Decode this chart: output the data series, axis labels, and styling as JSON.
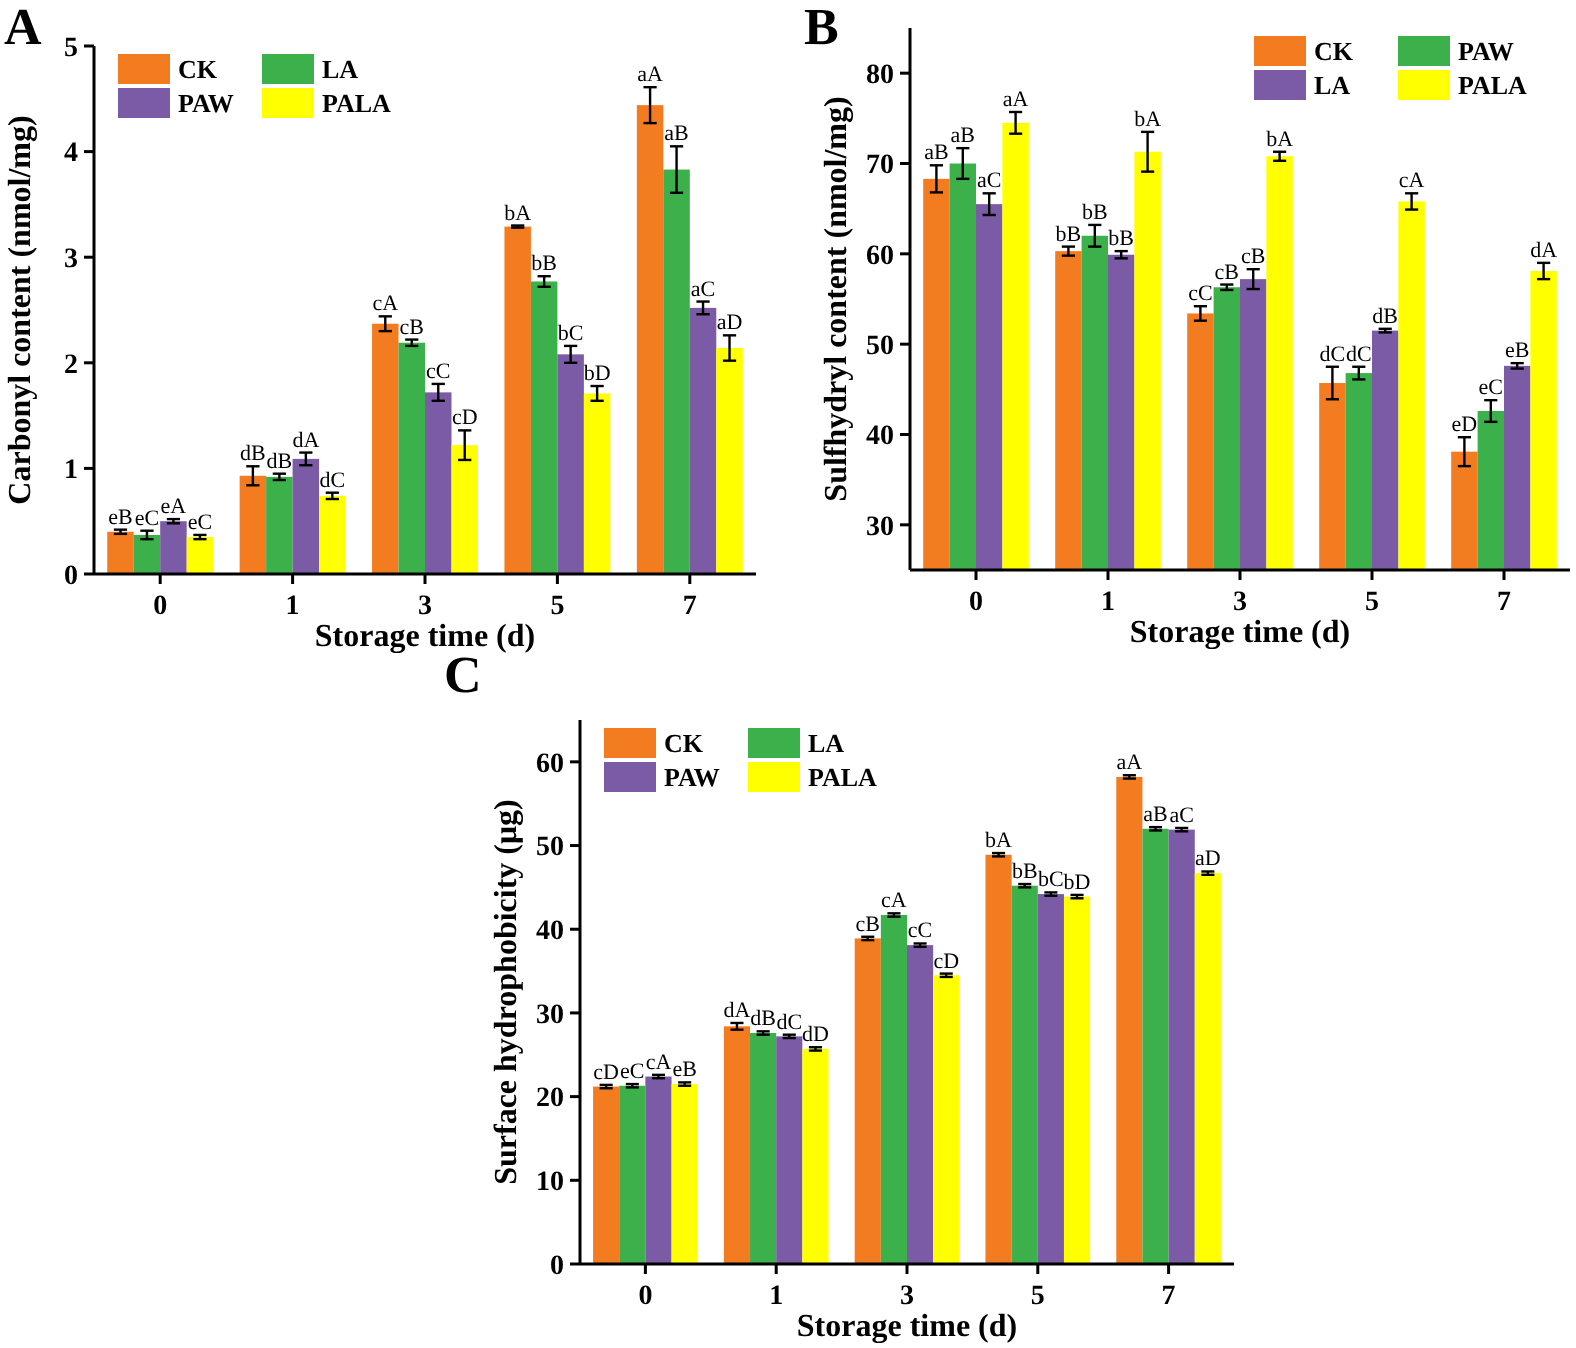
{
  "chart_data": [
    {
      "type": "bar",
      "title": "A",
      "xlabel": "Storage time (d)",
      "ylabel": "Carbonyl content (nmol/mg)",
      "categories": [
        "0",
        "1",
        "3",
        "5",
        "7"
      ],
      "ylim": [
        0,
        5
      ],
      "yticks": [
        0,
        1,
        2,
        3,
        4,
        5
      ],
      "legend": "top left",
      "series": [
        {
          "name": "CK",
          "color": "#f47c20",
          "values": [
            0.4,
            0.93,
            2.37,
            3.29,
            4.44
          ],
          "errors": [
            0.02,
            0.09,
            0.07,
            0.01,
            0.17
          ],
          "value_labels": [
            "eB",
            "dB",
            "cA",
            "bA",
            "aA"
          ]
        },
        {
          "name": "LA",
          "color": "#3cb04a",
          "values": [
            0.37,
            0.92,
            2.19,
            2.77,
            3.83
          ],
          "errors": [
            0.04,
            0.03,
            0.03,
            0.05,
            0.22
          ],
          "value_labels": [
            "eC",
            "dB",
            "cB",
            "bB",
            "aB"
          ]
        },
        {
          "name": "PAW",
          "color": "#7b5aa6",
          "values": [
            0.5,
            1.09,
            1.72,
            2.08,
            2.52
          ],
          "errors": [
            0.02,
            0.06,
            0.08,
            0.08,
            0.06
          ],
          "value_labels": [
            "eA",
            "dA",
            "cC",
            "bC",
            "aC"
          ]
        },
        {
          "name": "PALA",
          "color": "#ffff00",
          "values": [
            0.35,
            0.74,
            1.22,
            1.71,
            2.14
          ],
          "errors": [
            0.02,
            0.03,
            0.14,
            0.07,
            0.12
          ],
          "value_labels": [
            "eC",
            "dC",
            "cD",
            "bD",
            "aD"
          ]
        }
      ]
    },
    {
      "type": "bar",
      "title": "B",
      "xlabel": "Storage time (d)",
      "ylabel": "Sulfhydryl content (nmol/mg)",
      "categories": [
        "0",
        "1",
        "3",
        "5",
        "7"
      ],
      "ylim": [
        25,
        85
      ],
      "yticks": [
        30,
        40,
        50,
        60,
        70,
        80
      ],
      "legend": "top right",
      "series": [
        {
          "name": "CK",
          "color": "#f47c20",
          "values": [
            68.3,
            60.3,
            53.4,
            45.7,
            38.1
          ],
          "errors": [
            1.5,
            0.5,
            0.8,
            1.8,
            1.6
          ],
          "value_labels": [
            "aB",
            "bB",
            "cC",
            "dC",
            "eD"
          ]
        },
        {
          "name": "PAW",
          "color": "#3cb04a",
          "values": [
            70.0,
            62.0,
            56.3,
            46.8,
            42.6
          ],
          "errors": [
            1.7,
            1.2,
            0.3,
            0.7,
            1.2
          ],
          "value_labels": [
            "aB",
            "bB",
            "cB",
            "dC",
            "eC"
          ]
        },
        {
          "name": "LA",
          "color": "#7b5aa6",
          "values": [
            65.5,
            59.9,
            57.2,
            51.5,
            47.6
          ],
          "errors": [
            1.2,
            0.4,
            1.1,
            0.2,
            0.3
          ],
          "value_labels": [
            "aC",
            "bB",
            "cB",
            "dB",
            "eB"
          ]
        },
        {
          "name": "PALA",
          "color": "#ffff00",
          "values": [
            74.5,
            71.3,
            70.8,
            65.8,
            58.1
          ],
          "errors": [
            1.2,
            2.2,
            0.5,
            0.9,
            0.9
          ],
          "value_labels": [
            "aA",
            "bA",
            "bA",
            "cA",
            "dA"
          ]
        }
      ]
    },
    {
      "type": "bar",
      "title": "C",
      "xlabel": "Storage time (d)",
      "ylabel": "Surface hydrophobicity (μg)",
      "categories": [
        "0",
        "1",
        "3",
        "5",
        "7"
      ],
      "ylim": [
        0,
        65
      ],
      "yticks": [
        0,
        10,
        20,
        30,
        40,
        50,
        60
      ],
      "legend": "top left",
      "series": [
        {
          "name": "CK",
          "color": "#f47c20",
          "values": [
            21.2,
            28.4,
            38.9,
            48.9,
            58.2
          ],
          "errors": [
            0.2,
            0.4,
            0.2,
            0.2,
            0.2
          ],
          "value_labels": [
            "cD",
            "dA",
            "cB",
            "bA",
            "aA"
          ]
        },
        {
          "name": "LA",
          "color": "#3cb04a",
          "values": [
            21.3,
            27.6,
            41.7,
            45.2,
            52.0
          ],
          "errors": [
            0.2,
            0.2,
            0.2,
            0.2,
            0.2
          ],
          "value_labels": [
            "eC",
            "dB",
            "cA",
            "bB",
            "aB"
          ]
        },
        {
          "name": "PAW",
          "color": "#7b5aa6",
          "values": [
            22.4,
            27.2,
            38.1,
            44.2,
            51.9
          ],
          "errors": [
            0.2,
            0.2,
            0.2,
            0.2,
            0.2
          ],
          "value_labels": [
            "cA",
            "dC",
            "cC",
            "bC",
            "aC"
          ]
        },
        {
          "name": "PALA",
          "color": "#ffff00",
          "values": [
            21.5,
            25.7,
            34.5,
            43.9,
            46.7
          ],
          "errors": [
            0.2,
            0.2,
            0.2,
            0.2,
            0.2
          ],
          "value_labels": [
            "eB",
            "dD",
            "cD",
            "bD",
            "aD"
          ]
        }
      ]
    }
  ]
}
